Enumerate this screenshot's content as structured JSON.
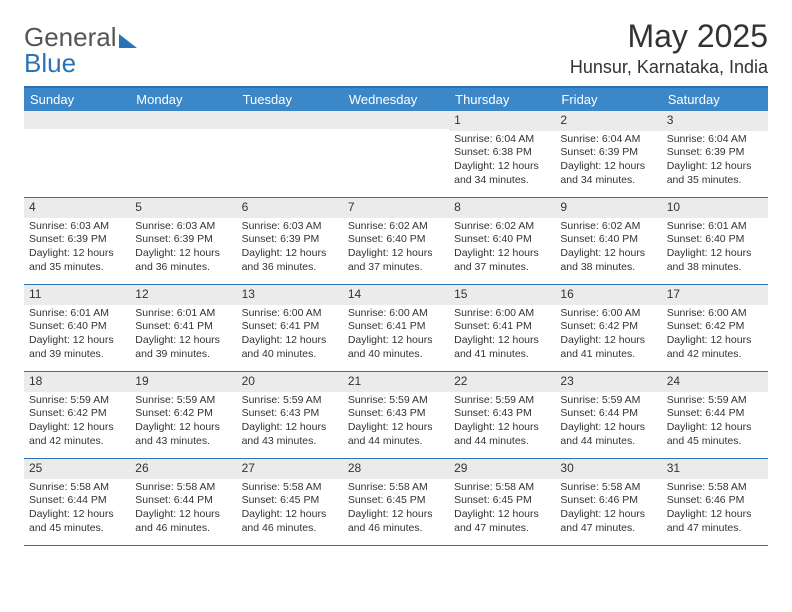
{
  "brand": {
    "part1": "General",
    "part2": "Blue"
  },
  "title": "May 2025",
  "location": "Hunsur, Karnataka, India",
  "colors": {
    "header_bg": "#3b87c8",
    "border": "#2a73b8",
    "daynum_bg": "#ebebeb",
    "text": "#333333",
    "white": "#ffffff"
  },
  "dows": [
    "Sunday",
    "Monday",
    "Tuesday",
    "Wednesday",
    "Thursday",
    "Friday",
    "Saturday"
  ],
  "weeks": [
    [
      {
        "n": "",
        "t": ""
      },
      {
        "n": "",
        "t": ""
      },
      {
        "n": "",
        "t": ""
      },
      {
        "n": "",
        "t": ""
      },
      {
        "n": "1",
        "t": "Sunrise: 6:04 AM\nSunset: 6:38 PM\nDaylight: 12 hours and 34 minutes."
      },
      {
        "n": "2",
        "t": "Sunrise: 6:04 AM\nSunset: 6:39 PM\nDaylight: 12 hours and 34 minutes."
      },
      {
        "n": "3",
        "t": "Sunrise: 6:04 AM\nSunset: 6:39 PM\nDaylight: 12 hours and 35 minutes."
      }
    ],
    [
      {
        "n": "4",
        "t": "Sunrise: 6:03 AM\nSunset: 6:39 PM\nDaylight: 12 hours and 35 minutes."
      },
      {
        "n": "5",
        "t": "Sunrise: 6:03 AM\nSunset: 6:39 PM\nDaylight: 12 hours and 36 minutes."
      },
      {
        "n": "6",
        "t": "Sunrise: 6:03 AM\nSunset: 6:39 PM\nDaylight: 12 hours and 36 minutes."
      },
      {
        "n": "7",
        "t": "Sunrise: 6:02 AM\nSunset: 6:40 PM\nDaylight: 12 hours and 37 minutes."
      },
      {
        "n": "8",
        "t": "Sunrise: 6:02 AM\nSunset: 6:40 PM\nDaylight: 12 hours and 37 minutes."
      },
      {
        "n": "9",
        "t": "Sunrise: 6:02 AM\nSunset: 6:40 PM\nDaylight: 12 hours and 38 minutes."
      },
      {
        "n": "10",
        "t": "Sunrise: 6:01 AM\nSunset: 6:40 PM\nDaylight: 12 hours and 38 minutes."
      }
    ],
    [
      {
        "n": "11",
        "t": "Sunrise: 6:01 AM\nSunset: 6:40 PM\nDaylight: 12 hours and 39 minutes."
      },
      {
        "n": "12",
        "t": "Sunrise: 6:01 AM\nSunset: 6:41 PM\nDaylight: 12 hours and 39 minutes."
      },
      {
        "n": "13",
        "t": "Sunrise: 6:00 AM\nSunset: 6:41 PM\nDaylight: 12 hours and 40 minutes."
      },
      {
        "n": "14",
        "t": "Sunrise: 6:00 AM\nSunset: 6:41 PM\nDaylight: 12 hours and 40 minutes."
      },
      {
        "n": "15",
        "t": "Sunrise: 6:00 AM\nSunset: 6:41 PM\nDaylight: 12 hours and 41 minutes."
      },
      {
        "n": "16",
        "t": "Sunrise: 6:00 AM\nSunset: 6:42 PM\nDaylight: 12 hours and 41 minutes."
      },
      {
        "n": "17",
        "t": "Sunrise: 6:00 AM\nSunset: 6:42 PM\nDaylight: 12 hours and 42 minutes."
      }
    ],
    [
      {
        "n": "18",
        "t": "Sunrise: 5:59 AM\nSunset: 6:42 PM\nDaylight: 12 hours and 42 minutes."
      },
      {
        "n": "19",
        "t": "Sunrise: 5:59 AM\nSunset: 6:42 PM\nDaylight: 12 hours and 43 minutes."
      },
      {
        "n": "20",
        "t": "Sunrise: 5:59 AM\nSunset: 6:43 PM\nDaylight: 12 hours and 43 minutes."
      },
      {
        "n": "21",
        "t": "Sunrise: 5:59 AM\nSunset: 6:43 PM\nDaylight: 12 hours and 44 minutes."
      },
      {
        "n": "22",
        "t": "Sunrise: 5:59 AM\nSunset: 6:43 PM\nDaylight: 12 hours and 44 minutes."
      },
      {
        "n": "23",
        "t": "Sunrise: 5:59 AM\nSunset: 6:44 PM\nDaylight: 12 hours and 44 minutes."
      },
      {
        "n": "24",
        "t": "Sunrise: 5:59 AM\nSunset: 6:44 PM\nDaylight: 12 hours and 45 minutes."
      }
    ],
    [
      {
        "n": "25",
        "t": "Sunrise: 5:58 AM\nSunset: 6:44 PM\nDaylight: 12 hours and 45 minutes."
      },
      {
        "n": "26",
        "t": "Sunrise: 5:58 AM\nSunset: 6:44 PM\nDaylight: 12 hours and 46 minutes."
      },
      {
        "n": "27",
        "t": "Sunrise: 5:58 AM\nSunset: 6:45 PM\nDaylight: 12 hours and 46 minutes."
      },
      {
        "n": "28",
        "t": "Sunrise: 5:58 AM\nSunset: 6:45 PM\nDaylight: 12 hours and 46 minutes."
      },
      {
        "n": "29",
        "t": "Sunrise: 5:58 AM\nSunset: 6:45 PM\nDaylight: 12 hours and 47 minutes."
      },
      {
        "n": "30",
        "t": "Sunrise: 5:58 AM\nSunset: 6:46 PM\nDaylight: 12 hours and 47 minutes."
      },
      {
        "n": "31",
        "t": "Sunrise: 5:58 AM\nSunset: 6:46 PM\nDaylight: 12 hours and 47 minutes."
      }
    ]
  ]
}
